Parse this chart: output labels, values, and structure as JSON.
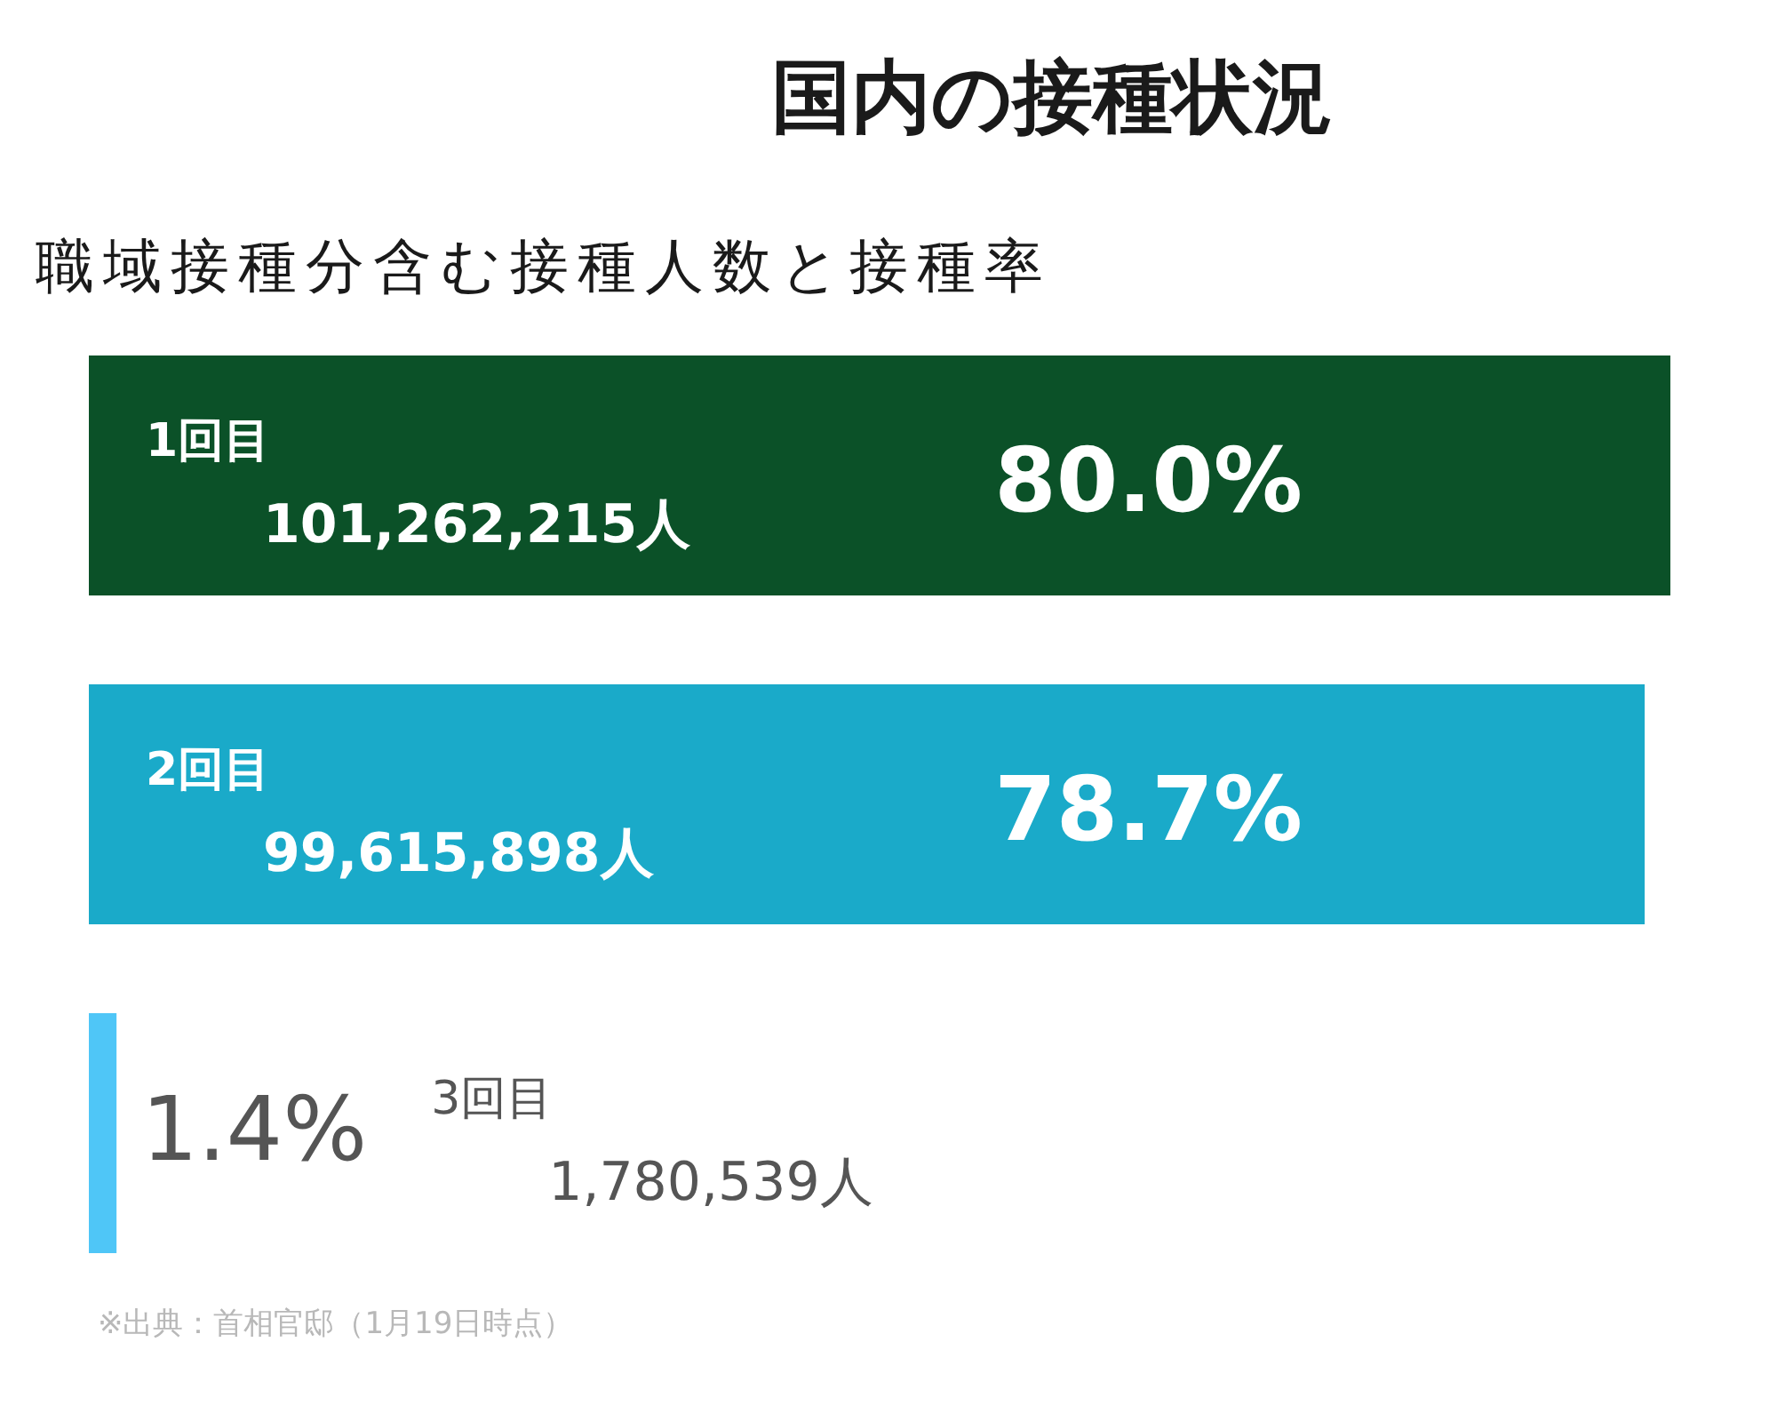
{
  "chart_data": {
    "type": "bar",
    "orientation": "horizontal",
    "title": "国内の接種状況",
    "subtitle": "職域接種分含む接種人数と接種率",
    "categories": [
      "1回目",
      "2回目",
      "3回目"
    ],
    "values": [
      80.0,
      78.7,
      1.4
    ],
    "colors": [
      "#0b5128",
      "#1aaac9",
      "#4fc6f7"
    ],
    "value_labels": [
      "80.0%",
      "78.7%",
      "1.4%"
    ],
    "xlim": [
      0,
      80
    ],
    "tick_labels": false,
    "annotations": [
      "101,262,215人",
      "99,615,898人",
      "1,780,539人",
      "※出典：首相官邸（1月19日時点）"
    ]
  }
}
